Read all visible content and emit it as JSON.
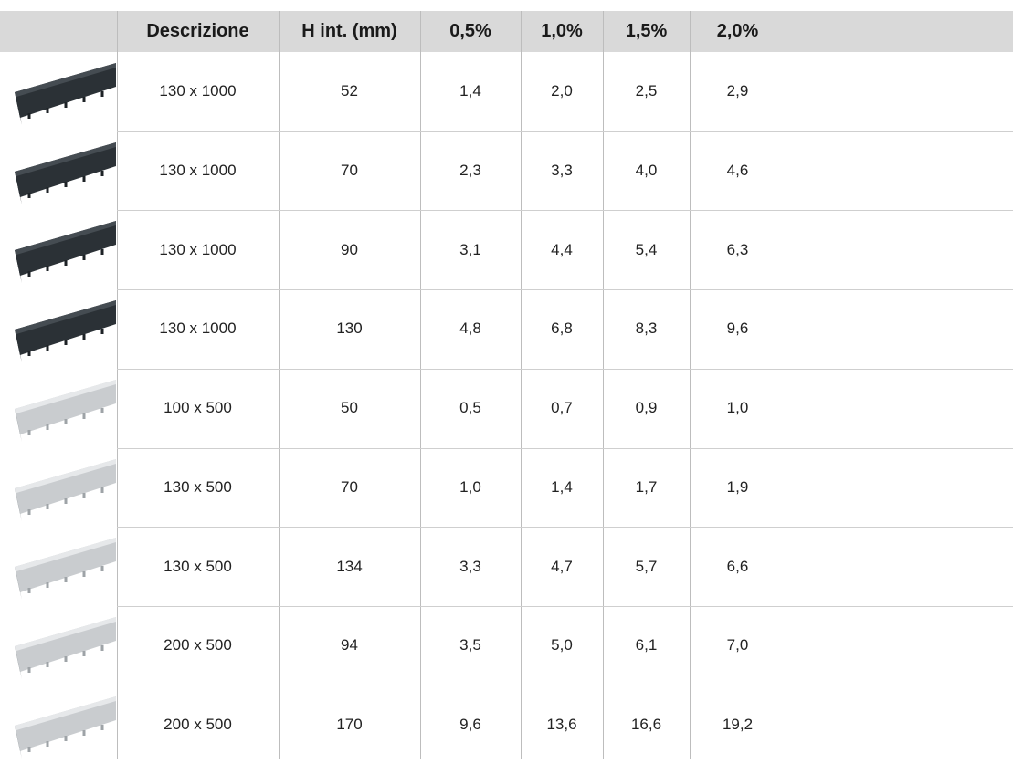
{
  "table": {
    "columns": [
      "Descrizione",
      "H int. (mm)",
      "0,5%",
      "1,0%",
      "1,5%",
      "2,0%"
    ],
    "rows": [
      [
        "130 x 1000",
        "52",
        "1,4",
        "2,0",
        "2,5",
        "2,9"
      ],
      [
        "130 x 1000",
        "70",
        "2,3",
        "3,3",
        "4,0",
        "4,6"
      ],
      [
        "130 x 1000",
        "90",
        "3,1",
        "4,4",
        "5,4",
        "6,3"
      ],
      [
        "130 x 1000",
        "130",
        "4,8",
        "6,8",
        "8,3",
        "9,6"
      ],
      [
        "100 x 500",
        "50",
        "0,5",
        "0,7",
        "0,9",
        "1,0"
      ],
      [
        "130 x 500",
        "70",
        "1,0",
        "1,4",
        "1,7",
        "1,9"
      ],
      [
        "130 x 500",
        "134",
        "3,3",
        "4,7",
        "5,7",
        "6,6"
      ],
      [
        "200 x 500",
        "94",
        "3,5",
        "5,0",
        "6,1",
        "7,0"
      ],
      [
        "200 x 500",
        "170",
        "9,6",
        "13,6",
        "16,6",
        "19,2"
      ]
    ]
  }
}
